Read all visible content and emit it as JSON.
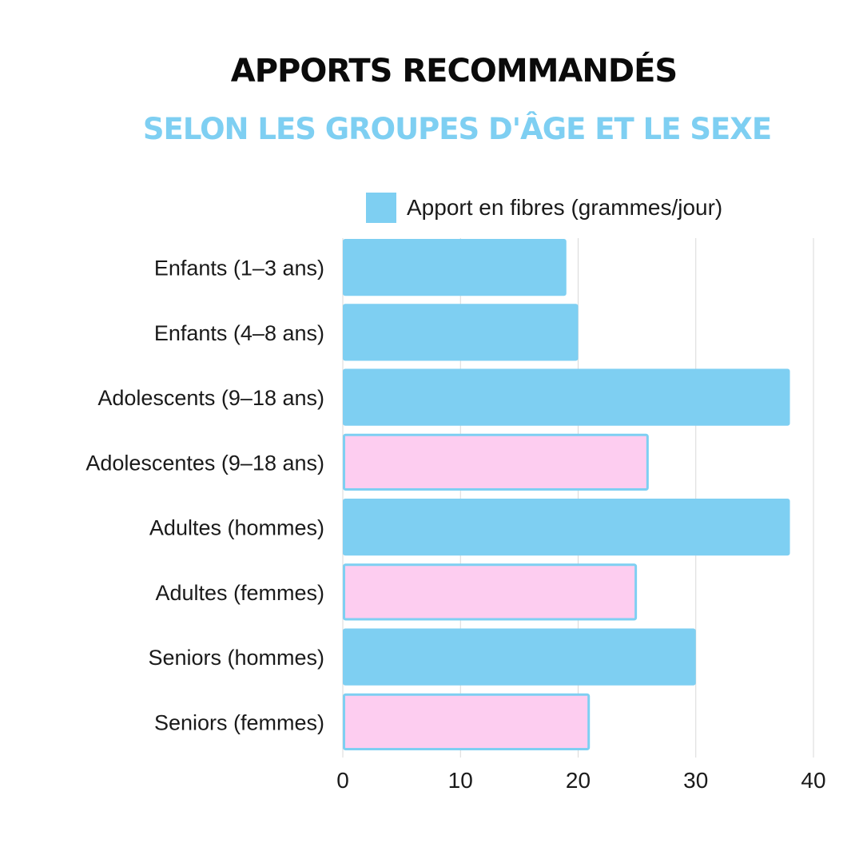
{
  "title": "APPORTS RECOMMANDÉS",
  "subtitle": "SELON LES GROUPES D'ÂGE ET LE SEXE",
  "colors": {
    "title": "#0b0b0b",
    "subtitle": "#7ecff2",
    "blue_bar": "#7ecff2",
    "pink_bar": "#fdcdf0",
    "pink_bar_border": "#7ecff2",
    "grid": "#d9d9d9"
  },
  "chart_data": {
    "type": "bar",
    "orientation": "horizontal",
    "legend": {
      "label": "Apport en fibres (grammes/jour)",
      "placement": "top-right"
    },
    "categories": [
      "Enfants (1–3 ans)",
      "Enfants (4–8 ans)",
      "Adolescents (9–18 ans)",
      "Adolescentes (9–18 ans)",
      "Adultes (hommes)",
      "Adultes (femmes)",
      "Seniors (hommes)",
      "Seniors (femmes)"
    ],
    "values": [
      19,
      20,
      38,
      26,
      38,
      25,
      30,
      21
    ],
    "bar_fill": [
      "blue",
      "blue",
      "blue",
      "pink",
      "blue",
      "pink",
      "blue",
      "pink"
    ],
    "xlim": [
      0,
      40
    ],
    "xticks": [
      0,
      10,
      20,
      30,
      40
    ],
    "grid": "vertical",
    "xlabel": "",
    "ylabel": ""
  }
}
